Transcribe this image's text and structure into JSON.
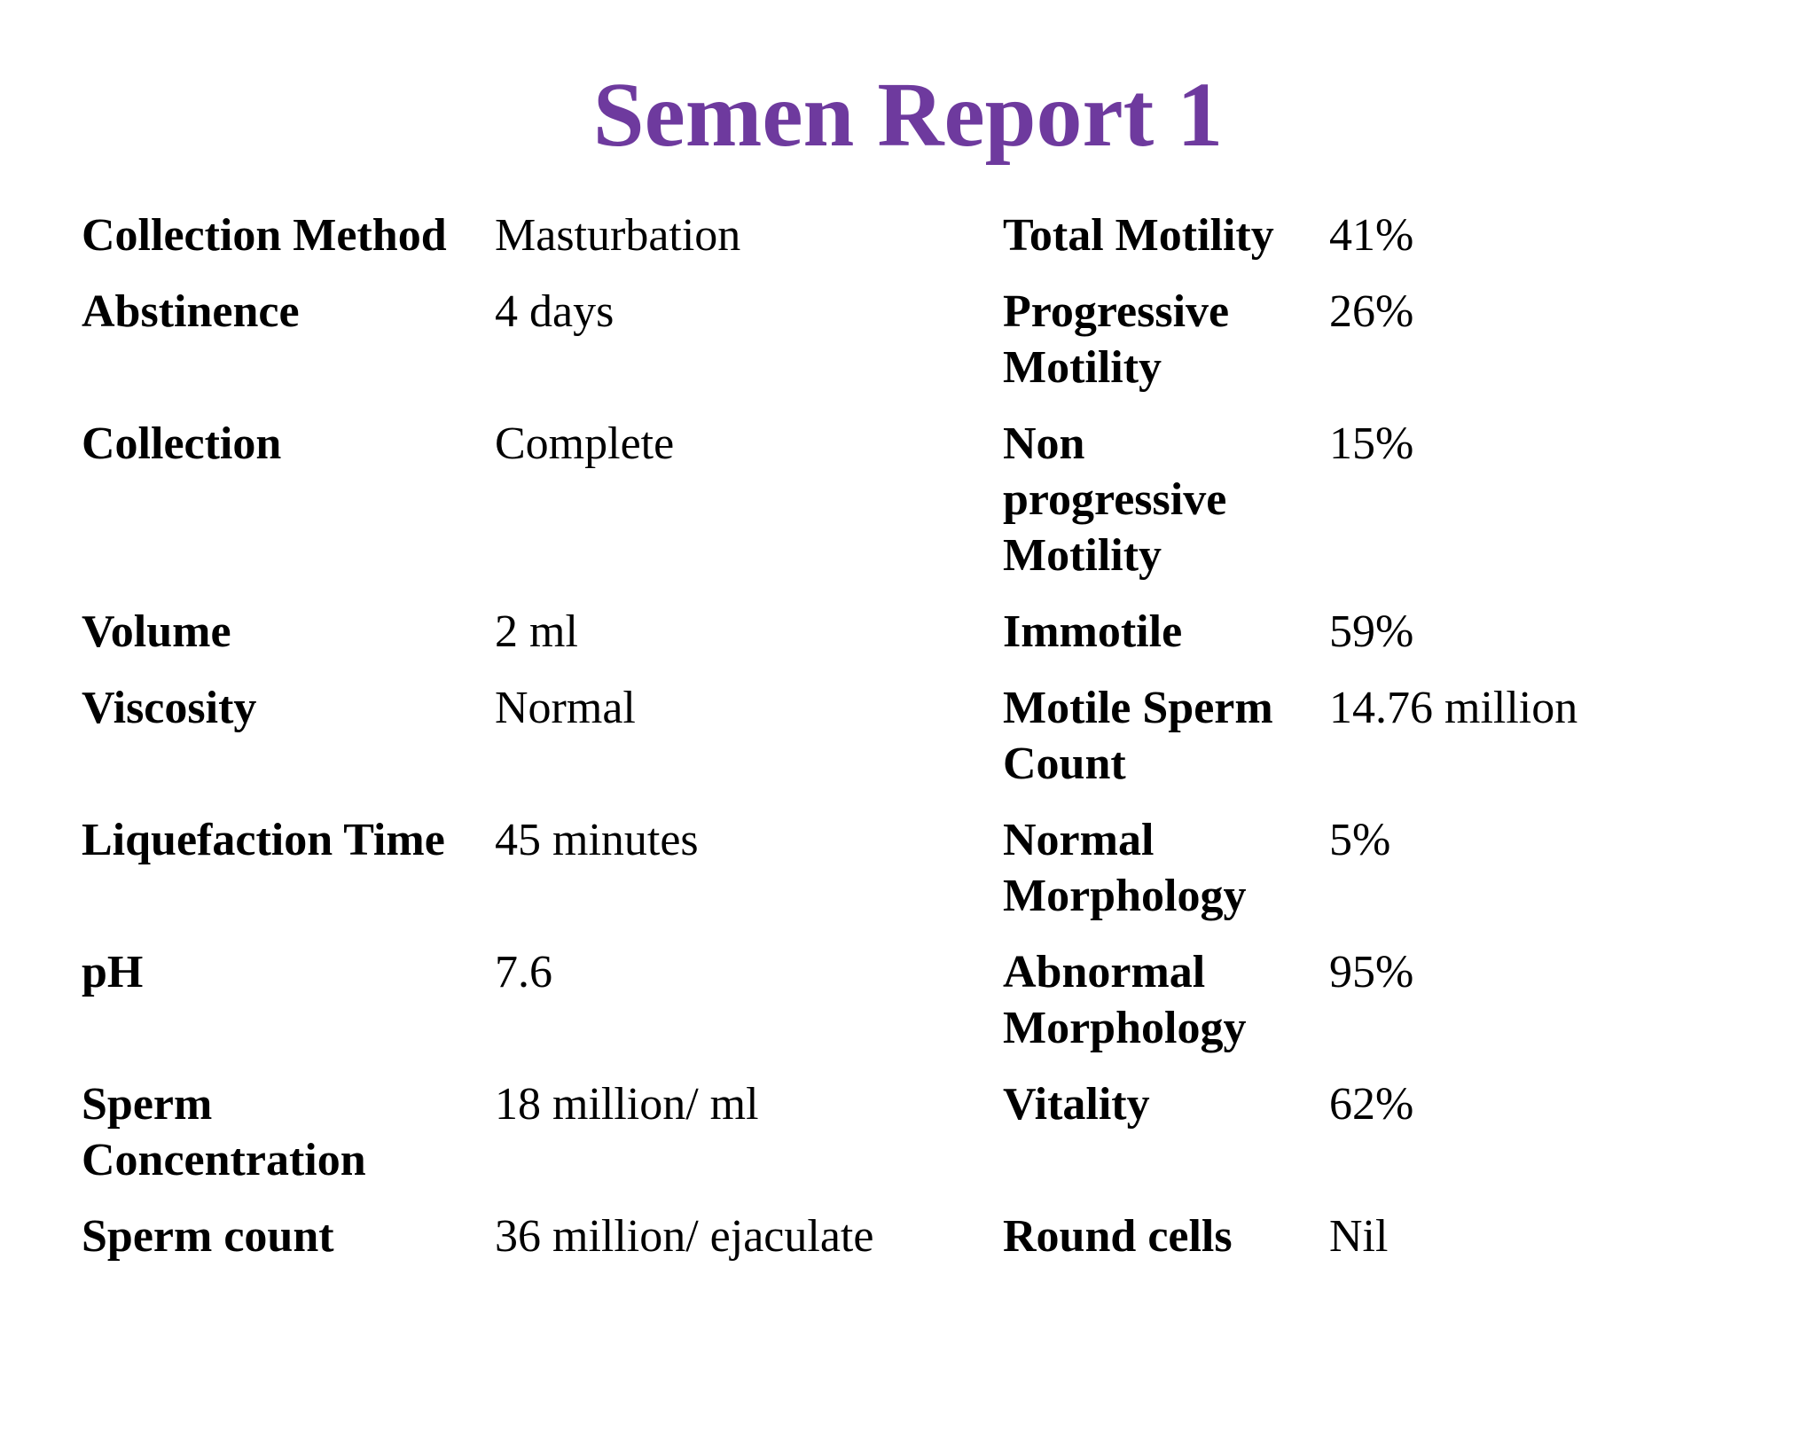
{
  "slide": {
    "title": "Semen Report 1",
    "title_color": "#6E3A9E",
    "background_color": "#ffffff",
    "text_color": "#000000"
  },
  "table": {
    "rows": [
      {
        "left_label": "Collection Method",
        "left_value": "Masturbation",
        "right_label": "Total Motility",
        "right_value": "41%"
      },
      {
        "left_label": "Abstinence",
        "left_value": "4 days",
        "right_label": "Progressive Motility",
        "right_value": "26%"
      },
      {
        "left_label": "Collection",
        "left_value": "Complete",
        "right_label": "Non progressive Motility",
        "right_value": "15%"
      },
      {
        "left_label": "Volume",
        "left_value": "2 ml",
        "right_label": "Immotile",
        "right_value": "59%"
      },
      {
        "left_label": "Viscosity",
        "left_value": "Normal",
        "right_label": "Motile Sperm Count",
        "right_value": "14.76 million"
      },
      {
        "left_label": "Liquefaction Time",
        "left_value": "45 minutes",
        "right_label": "Normal Morphology",
        "right_value": "5%"
      },
      {
        "left_label": "pH",
        "left_value": "7.6",
        "right_label": "Abnormal Morphology",
        "right_value": "95%"
      },
      {
        "left_label": "Sperm Concentration",
        "left_value": "18 million/ ml",
        "right_label": "Vitality",
        "right_value": "62%"
      },
      {
        "left_label": "Sperm count",
        "left_value": "36 million/ ejaculate",
        "right_label": "Round cells",
        "right_value": "Nil"
      }
    ]
  }
}
